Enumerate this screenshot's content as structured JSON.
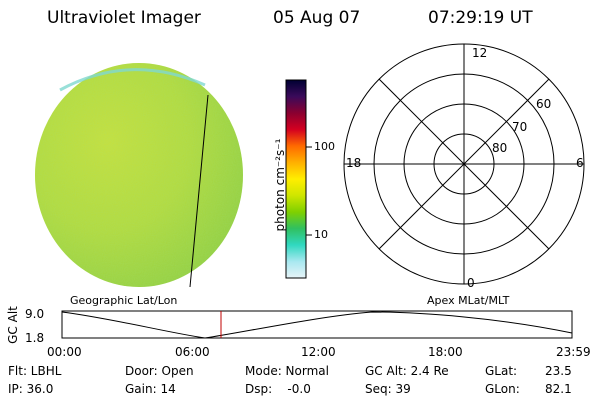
{
  "header": {
    "instrument": "Ultraviolet Imager",
    "date": "05 Aug 07",
    "time": "07:29:19 UT"
  },
  "colorbar": {
    "unit_label": "photon cm⁻²s⁻¹",
    "ticks": [
      "100",
      "10"
    ],
    "colors": [
      "#000033",
      "#3a0a5a",
      "#8a0030",
      "#d40020",
      "#ff6a00",
      "#ffb000",
      "#ffee00",
      "#cfe600",
      "#7fd000",
      "#30c060",
      "#30d8c0",
      "#a8e8f0",
      "#e8f4f8"
    ]
  },
  "image_panel": {
    "label": "Geographic Lat/Lon"
  },
  "polar_panel": {
    "label": "Apex MLat/MLT",
    "mlt_labels": {
      "top": "12",
      "left": "18",
      "right": "6",
      "bottom": "0"
    },
    "lat_labels": [
      "60",
      "70",
      "80"
    ]
  },
  "timeline": {
    "ylabel": "GC Alt",
    "yticks": [
      "9.0",
      "1.8"
    ],
    "xticks": [
      "00:00",
      "06:00",
      "12:00",
      "18:00",
      "23:59"
    ]
  },
  "status": {
    "row1": {
      "filter": "Flt: LBHL",
      "door": "Door: Open",
      "mode": "Mode: Normal",
      "gcalt": "GC Alt: 2.4 Re",
      "glat_label": "GLat:",
      "glat_value": "23.5"
    },
    "row2": {
      "ip": "IP: 36.0",
      "gain": "Gain: 14",
      "dsp": "Dsp:    -0.0",
      "seq": "Seq: 39",
      "glon_label": "GLon:",
      "glon_value": "82.1"
    }
  }
}
